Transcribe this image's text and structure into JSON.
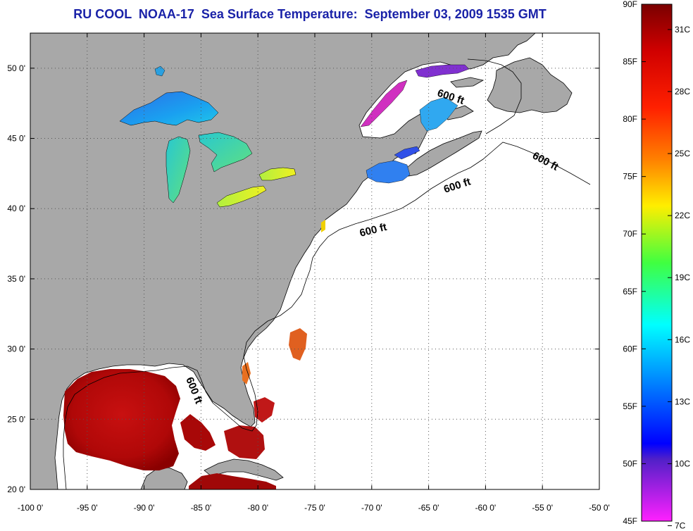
{
  "title": "RU COOL  NOAA-17  Sea Surface Temperature:  September 03, 2009 1535 GMT",
  "x_tick_labels": [
    "-100 0'",
    "-95 0'",
    "-90 0'",
    "-85 0'",
    "-80 0'",
    "-75 0'",
    "-70 0'",
    "-65 0'",
    "-60 0'",
    "-55 0'",
    "-50 0'"
  ],
  "y_tick_labels": [
    "50 0'",
    "45 0'",
    "40 0'",
    "35 0'",
    "30 0'",
    "25 0'",
    "20 0'"
  ],
  "lon_range": [
    -100,
    -50
  ],
  "lat_range": [
    20,
    52.5
  ],
  "bathymetry_label": "600 ft",
  "colorbar": {
    "fahrenheit_labels": [
      "90F",
      "85F",
      "80F",
      "75F",
      "70F",
      "65F",
      "60F",
      "55F",
      "50F",
      "45F"
    ],
    "celsius_labels": [
      "31C",
      "28C",
      "25C",
      "22C",
      "19C",
      "16C",
      "13C",
      "10C",
      "7C"
    ],
    "colors": [
      "#8b0000",
      "#ff0000",
      "#ff8000",
      "#ffff00",
      "#00ff00",
      "#00ffff",
      "#0080ff",
      "#0000ff",
      "#6020c0",
      "#ff00ff"
    ]
  },
  "colors": {
    "land": "#a8a8a8",
    "ocean_nodata": "#ffffff",
    "title": "#1a22a8"
  }
}
